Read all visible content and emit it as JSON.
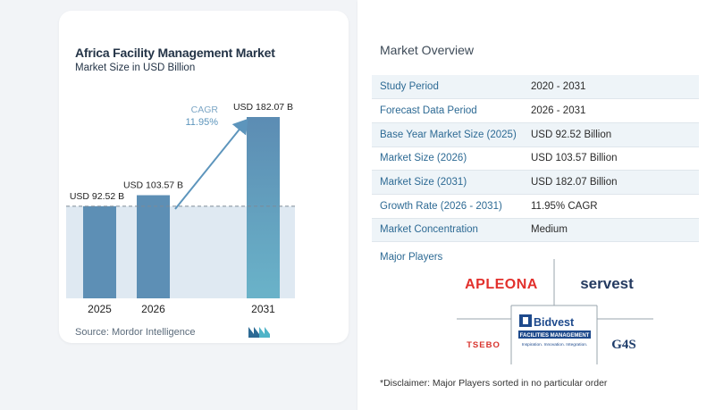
{
  "chart_data": {
    "type": "bar",
    "title": "Africa Facility Management Market",
    "subtitle": "Market Size in USD Billion",
    "categories": [
      "2025",
      "2026",
      "2031"
    ],
    "values": [
      92.52,
      103.57,
      182.07
    ],
    "value_labels": [
      "USD 92.52 B",
      "USD 103.57 B",
      "USD 182.07 B"
    ],
    "cagr_label": "CAGR",
    "cagr_value": "11.95%",
    "bar_colors": [
      "#5d8fb5",
      "#5d8fb5",
      "#5d95bc"
    ],
    "band_color": "#dfe9f2",
    "grid": false
  },
  "source": "Source:  Mordor Intelligence",
  "overview": {
    "title": "Market Overview",
    "rows": [
      {
        "key": "Study Period",
        "value": "2020 - 2031"
      },
      {
        "key": "Forecast Data Period",
        "value": "2026 - 2031"
      },
      {
        "key": "Base Year Market Size (2025)",
        "value": "USD 92.52 Billion"
      },
      {
        "key": "Market Size (2026)",
        "value": "USD 103.57 Billion"
      },
      {
        "key": "Market Size (2031)",
        "value": "USD 182.07 Billion"
      },
      {
        "key": "Growth Rate (2026 - 2031)",
        "value": "11.95% CAGR"
      },
      {
        "key": "Market Concentration",
        "value": "Medium"
      }
    ]
  },
  "major_players": {
    "title": "Major Players",
    "logos": {
      "apleona": "APLEONA",
      "servest": "servest",
      "bidvest_name": "Bidvest",
      "bidvest_sub": "FACILITIES MANAGEMENT",
      "bidvest_tag": "Inspiration. Innovation. Integration.",
      "tsebo": "TSEBO",
      "g4s": "G4S"
    }
  },
  "disclaimer": "*Disclaimer: Major Players sorted in no particular order",
  "colors": {
    "accent": "#2d6a94",
    "apleona": "#e2302c",
    "servest": "#243a60",
    "bidvest": "#1e4a8c"
  }
}
